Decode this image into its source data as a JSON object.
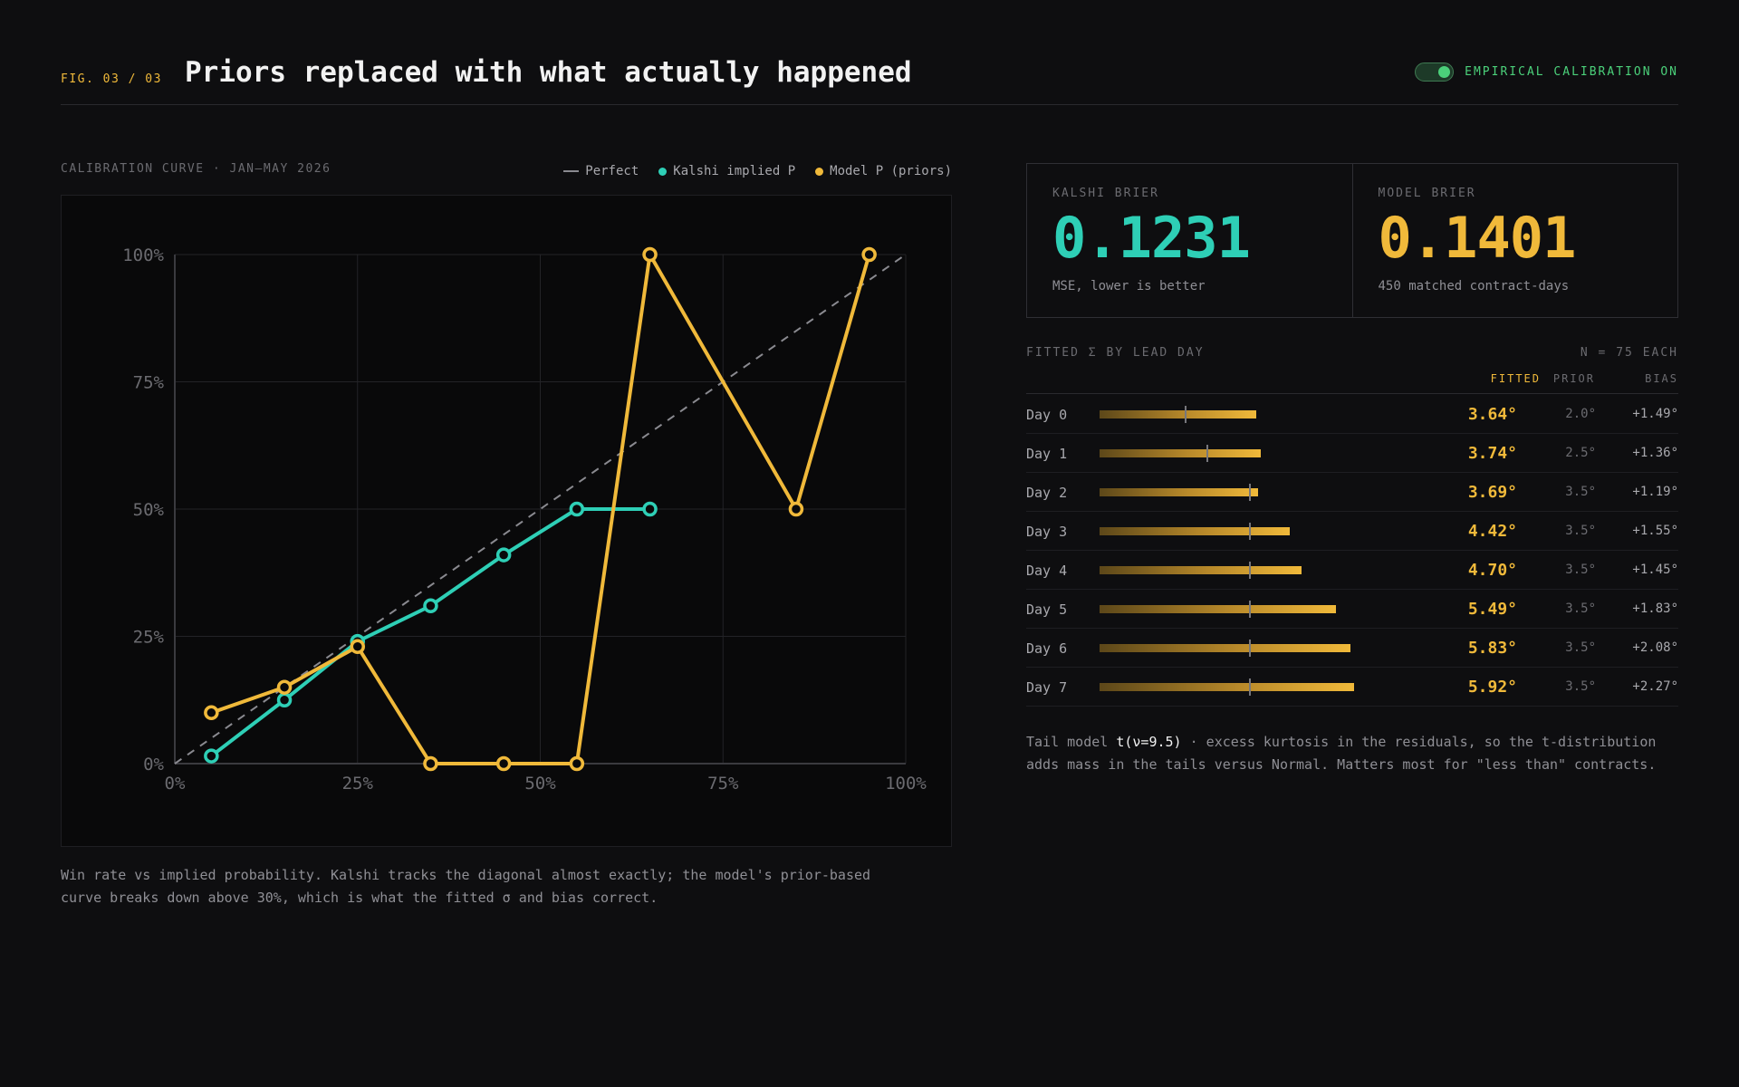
{
  "header": {
    "fig_label": "FIG. 03 / 03",
    "title": "Priors replaced with what actually happened",
    "toggle_label": "EMPIRICAL CALIBRATION ON",
    "toggle_on": true
  },
  "chart_section": {
    "label": "CALIBRATION CURVE · JAN–MAY 2026",
    "caption": "Win rate vs implied probability. Kalshi tracks the diagonal almost exactly; the model's prior-based curve breaks down above 30%, which is what the fitted σ and bias correct."
  },
  "chart_data": {
    "type": "line",
    "title": "",
    "xlabel": "",
    "ylabel": "",
    "xlim": [
      0,
      100
    ],
    "ylim": [
      0,
      100
    ],
    "x_ticks": [
      "0%",
      "25%",
      "50%",
      "75%",
      "100%"
    ],
    "y_ticks": [
      "0%",
      "25%",
      "50%",
      "75%",
      "100%"
    ],
    "grid": true,
    "legend_position": "top-right",
    "series": [
      {
        "name": "Perfect",
        "style": "dashed",
        "color": "#8a8a90",
        "points": [
          [
            0,
            0
          ],
          [
            100,
            100
          ]
        ]
      },
      {
        "name": "Kalshi implied P",
        "color": "#2ecfb6",
        "points": [
          [
            5,
            1.5
          ],
          [
            15,
            12.5
          ],
          [
            25,
            24
          ],
          [
            35,
            31
          ],
          [
            45,
            41
          ],
          [
            55,
            50
          ],
          [
            65,
            50
          ]
        ]
      },
      {
        "name": "Model P (priors)",
        "color": "#f0b93a",
        "points": [
          [
            5,
            10
          ],
          [
            15,
            15
          ],
          [
            25,
            23
          ],
          [
            35,
            0
          ],
          [
            45,
            0
          ],
          [
            55,
            0
          ],
          [
            65,
            100
          ],
          [
            85,
            50
          ],
          [
            95,
            100
          ]
        ]
      }
    ]
  },
  "stats": {
    "kalshi": {
      "label": "KALSHI BRIER",
      "value": "0.1231",
      "sub": "MSE, lower is better",
      "color": "#2ecfb6"
    },
    "model": {
      "label": "MODEL BRIER",
      "value": "0.1401",
      "sub": "450 matched contract-days",
      "color": "#f0b93a"
    }
  },
  "sigma_table": {
    "title": "FITTED Σ BY LEAD DAY",
    "n_label": "N = 75 EACH",
    "columns": {
      "fitted": "FITTED",
      "prior": "PRIOR",
      "bias": "BIAS"
    },
    "bar_scale_max": 8.0,
    "rows": [
      {
        "day": "Day 0",
        "fitted": "3.64°",
        "fitted_value": 3.64,
        "prior": "2.0°",
        "prior_value": 2.0,
        "bias": "+1.49°"
      },
      {
        "day": "Day 1",
        "fitted": "3.74°",
        "fitted_value": 3.74,
        "prior": "2.5°",
        "prior_value": 2.5,
        "bias": "+1.36°"
      },
      {
        "day": "Day 2",
        "fitted": "3.69°",
        "fitted_value": 3.69,
        "prior": "3.5°",
        "prior_value": 3.5,
        "bias": "+1.19°"
      },
      {
        "day": "Day 3",
        "fitted": "4.42°",
        "fitted_value": 4.42,
        "prior": "3.5°",
        "prior_value": 3.5,
        "bias": "+1.55°"
      },
      {
        "day": "Day 4",
        "fitted": "4.70°",
        "fitted_value": 4.7,
        "prior": "3.5°",
        "prior_value": 3.5,
        "bias": "+1.45°"
      },
      {
        "day": "Day 5",
        "fitted": "5.49°",
        "fitted_value": 5.49,
        "prior": "3.5°",
        "prior_value": 3.5,
        "bias": "+1.83°"
      },
      {
        "day": "Day 6",
        "fitted": "5.83°",
        "fitted_value": 5.83,
        "prior": "3.5°",
        "prior_value": 3.5,
        "bias": "+2.08°"
      },
      {
        "day": "Day 7",
        "fitted": "5.92°",
        "fitted_value": 5.92,
        "prior": "3.5°",
        "prior_value": 3.5,
        "bias": "+2.27°"
      }
    ]
  },
  "tail_note": {
    "prefix": "Tail model ",
    "highlight": "t(ν=9.5)",
    "suffix": " · excess kurtosis in the residuals, so the t-distribution adds mass in the tails versus Normal. Matters most for \"less than\" contracts."
  },
  "colors": {
    "background": "#0e0e10",
    "kalshi": "#2ecfb6",
    "model": "#f0b93a",
    "toggle": "#4bd07a",
    "perfect": "#8a8a90"
  }
}
